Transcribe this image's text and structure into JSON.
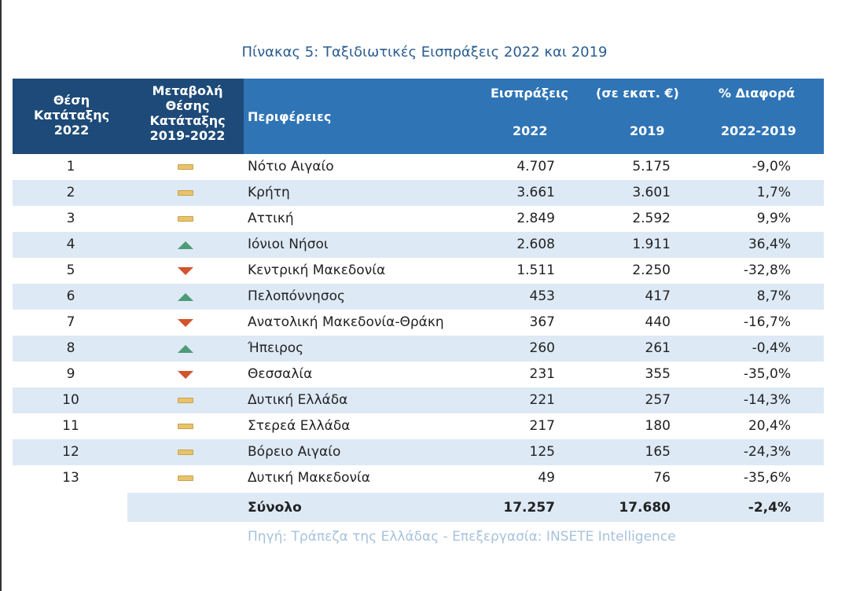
{
  "title": "Πίνακας 5: Ταξιδιωτικές Εισπράξεις 2022 και 2019",
  "header": {
    "rank": [
      "Θέση",
      "Κατάταξης",
      "2022"
    ],
    "change": [
      "Μεταβολή",
      "Θέσης",
      "Κατάταξης",
      "2019-2022"
    ],
    "region": "Περιφέρειες",
    "receipts": "Εισπράξεις",
    "unit": "(σε εκατ. €)",
    "diff": "% Διαφορά",
    "y2022": "2022",
    "y2019": "2019",
    "range": "2022-2019"
  },
  "rows": [
    {
      "rank": "1",
      "change": "same",
      "region": "Νότιο Αιγαίο",
      "v2022": "4.707",
      "v2019": "5.175",
      "pct": "-9,0%"
    },
    {
      "rank": "2",
      "change": "same",
      "region": "Κρήτη",
      "v2022": "3.661",
      "v2019": "3.601",
      "pct": "1,7%"
    },
    {
      "rank": "3",
      "change": "same",
      "region": "Αττική",
      "v2022": "2.849",
      "v2019": "2.592",
      "pct": "9,9%"
    },
    {
      "rank": "4",
      "change": "up",
      "region": "Ιόνιοι Νήσοι",
      "v2022": "2.608",
      "v2019": "1.911",
      "pct": "36,4%"
    },
    {
      "rank": "5",
      "change": "down",
      "region": "Κεντρική Μακεδονία",
      "v2022": "1.511",
      "v2019": "2.250",
      "pct": "-32,8%"
    },
    {
      "rank": "6",
      "change": "up",
      "region": "Πελοπόννησος",
      "v2022": "453",
      "v2019": "417",
      "pct": "8,7%"
    },
    {
      "rank": "7",
      "change": "down",
      "region": "Ανατολική Μακεδονία-Θράκη",
      "v2022": "367",
      "v2019": "440",
      "pct": "-16,7%"
    },
    {
      "rank": "8",
      "change": "up",
      "region": "Ήπειρος",
      "v2022": "260",
      "v2019": "261",
      "pct": "-0,4%"
    },
    {
      "rank": "9",
      "change": "down",
      "region": "Θεσσαλία",
      "v2022": "231",
      "v2019": "355",
      "pct": "-35,0%"
    },
    {
      "rank": "10",
      "change": "same",
      "region": "Δυτική Ελλάδα",
      "v2022": "221",
      "v2019": "257",
      "pct": "-14,3%"
    },
    {
      "rank": "11",
      "change": "same",
      "region": "Στερεά Ελλάδα",
      "v2022": "217",
      "v2019": "180",
      "pct": "20,4%"
    },
    {
      "rank": "12",
      "change": "same",
      "region": "Βόρειο Αιγαίο",
      "v2022": "125",
      "v2019": "165",
      "pct": "-24,3%"
    },
    {
      "rank": "13",
      "change": "same",
      "region": "Δυτική Μακεδονία",
      "v2022": "49",
      "v2019": "76",
      "pct": "-35,6%"
    }
  ],
  "total": {
    "label": "Σύνολο",
    "v2022": "17.257",
    "v2019": "17.680",
    "pct": "-2,4%"
  },
  "source": "Πηγή: Τράπεζα της Ελλάδας - Επεξεργασία: INSETE Intelligence"
}
